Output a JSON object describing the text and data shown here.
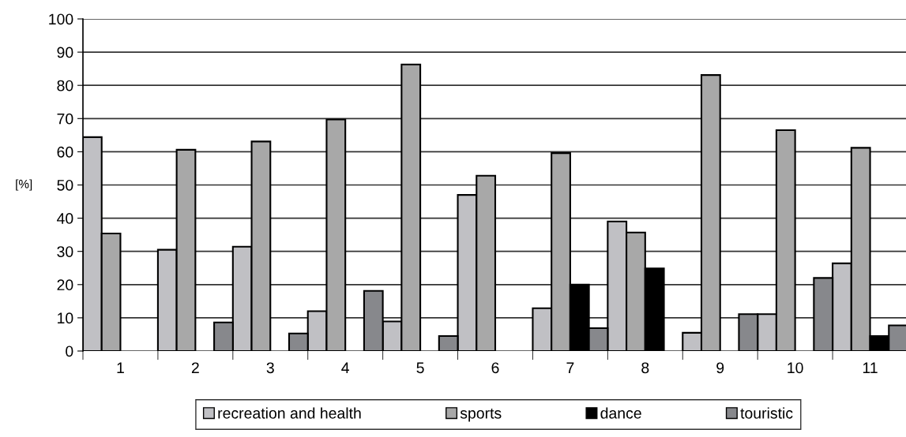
{
  "chart_data": {
    "type": "bar",
    "ylabel": "[%]",
    "categories": [
      "1",
      "2",
      "3",
      "4",
      "5",
      "6",
      "7",
      "8",
      "9",
      "10",
      "11"
    ],
    "series": [
      {
        "name": "recreation and health",
        "color": "#c0c0c4",
        "values": [
          64.4,
          30.5,
          31.4,
          12.0,
          8.9,
          47.0,
          12.9,
          39.0,
          5.5,
          11.1,
          26.4
        ]
      },
      {
        "name": "sports",
        "color": "#a8a8a8",
        "values": [
          35.4,
          60.6,
          63.1,
          69.7,
          86.3,
          52.8,
          59.6,
          35.7,
          83.1,
          66.5,
          61.2
        ]
      },
      {
        "name": "dance",
        "color": "#000000",
        "values": [
          null,
          null,
          null,
          null,
          null,
          null,
          20.0,
          24.9,
          null,
          null,
          4.5
        ]
      },
      {
        "name": "touristic",
        "color": "#87888c",
        "values": [
          null,
          8.6,
          5.3,
          18.1,
          4.5,
          null,
          6.9,
          null,
          11.1,
          22.0,
          7.7
        ]
      }
    ],
    "ylim": [
      0,
      100
    ],
    "yticks": [
      0,
      10,
      20,
      30,
      40,
      50,
      60,
      70,
      80,
      90,
      100
    ],
    "grid": "y",
    "legend": "bottom"
  }
}
